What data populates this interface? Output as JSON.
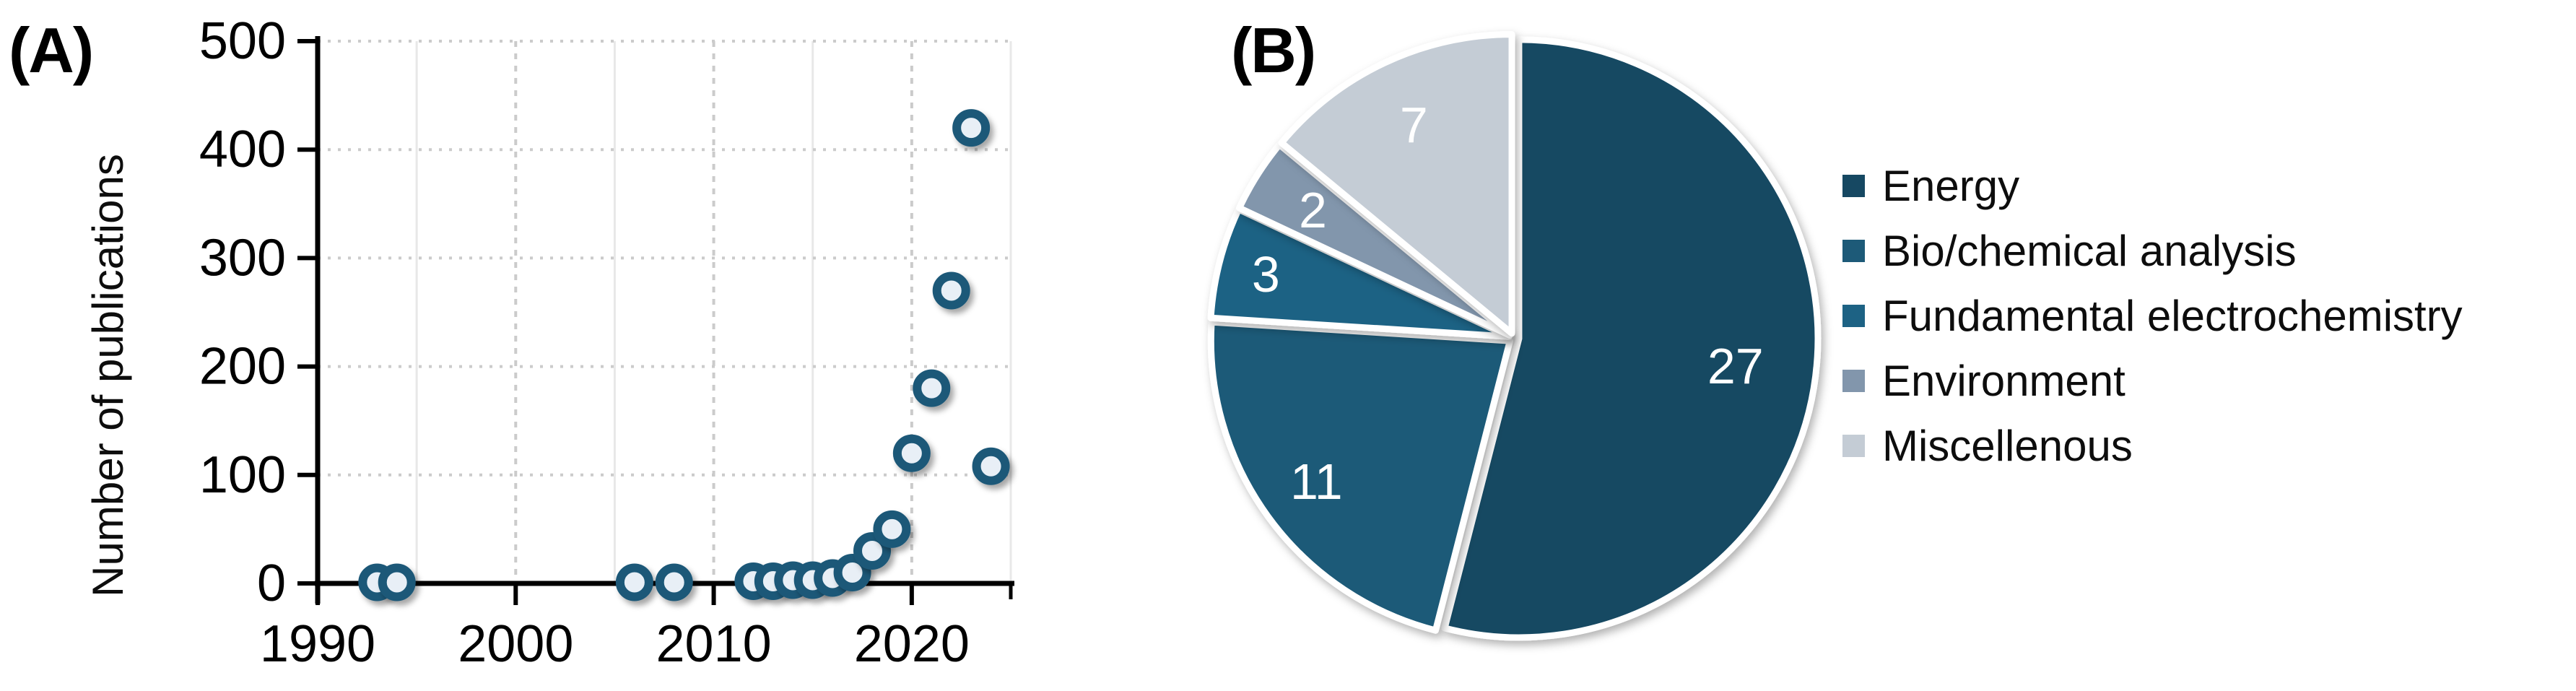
{
  "panels": {
    "a": {
      "label": "(A)"
    },
    "b": {
      "label": "(B)"
    }
  },
  "colors": {
    "axis": "#000000",
    "tick_label": "#000000",
    "grid_dashed": "#cbcbcb",
    "grid_minor": "#e8e8e8",
    "marker_ring": "#1d5878",
    "marker_fill": "#e8eff6",
    "pie_border": "#ffffff",
    "slice_label": "#ffffff",
    "legend_text": "#0d0d0d"
  },
  "chart_data": [
    {
      "type": "scatter",
      "title": "",
      "xlabel": "",
      "ylabel": "Number of publications",
      "xlim": [
        1990,
        2025
      ],
      "ylim": [
        0,
        500
      ],
      "x_ticks": [
        1990,
        2000,
        2010,
        2020
      ],
      "x_minor_gridlines": [
        1995,
        2005,
        2015,
        2025
      ],
      "y_ticks": [
        0,
        100,
        200,
        300,
        400,
        500
      ],
      "grid": "dashed gray gridlines at labeled ticks, faint solid vertical lines at 5-year minors",
      "legend_position": "none",
      "points": [
        {
          "x": 1993,
          "y": 1
        },
        {
          "x": 1994,
          "y": 1
        },
        {
          "x": 2006,
          "y": 1
        },
        {
          "x": 2008,
          "y": 1
        },
        {
          "x": 2012,
          "y": 2
        },
        {
          "x": 2013,
          "y": 2
        },
        {
          "x": 2014,
          "y": 3
        },
        {
          "x": 2015,
          "y": 3
        },
        {
          "x": 2016,
          "y": 5
        },
        {
          "x": 2017,
          "y": 10
        },
        {
          "x": 2018,
          "y": 30
        },
        {
          "x": 2019,
          "y": 50
        },
        {
          "x": 2020,
          "y": 120
        },
        {
          "x": 2021,
          "y": 180
        },
        {
          "x": 2022,
          "y": 270
        },
        {
          "x": 2023,
          "y": 420
        },
        {
          "x": 2024,
          "y": 108
        }
      ]
    },
    {
      "type": "pie",
      "labels": [
        "Energy",
        "Bio/chemical analysis",
        "Fundamental electrochemistry",
        "Environment",
        "Miscellenous"
      ],
      "values": [
        27,
        11,
        3,
        2,
        7
      ],
      "colors": [
        "#164862",
        "#1d5a78",
        "#1d6284",
        "#8296ac",
        "#c4ccd5"
      ],
      "start_angle_deg": 0,
      "direction": "clockwise",
      "legend_position": "right",
      "slice_label_color": "#ffffff"
    }
  ]
}
